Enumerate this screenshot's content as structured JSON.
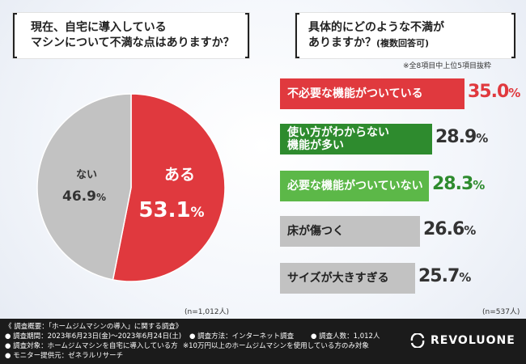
{
  "left_panel": {
    "title_line1": "現在、自宅に導入している",
    "title_line2": "マシンについて不満な点はありますか？",
    "sample_note": "(n=1,012人)"
  },
  "right_panel": {
    "title_line1": "具体的にどのような不満が",
    "title_line2": "ありますか？",
    "title_sub": "(複数回答可)",
    "top_note": "※全8項目中上位5項目抜粋",
    "sample_note": "(n=537人)"
  },
  "chart_data": [
    {
      "type": "pie",
      "title": "現在、自宅に導入しているマシンについて不満な点はありますか？",
      "slices": [
        {
          "label": "ある",
          "value": 53.1,
          "display": "53.1",
          "unit": "%",
          "color": "#e0393e"
        },
        {
          "label": "ない",
          "value": 46.9,
          "display": "46.9",
          "unit": "%",
          "color": "#c2c2c2"
        }
      ]
    },
    {
      "type": "bar",
      "orientation": "horizontal",
      "title": "具体的にどのような不満がありますか？(複数回答可)",
      "bars": [
        {
          "label": "不必要な機能がついている",
          "value": 35.0,
          "display": "35.0",
          "unit": "%",
          "color": "#e0393e",
          "text_color": "#ffffff",
          "value_color": "#e0393e"
        },
        {
          "label": "使い方がわからない\n機能が多い",
          "value": 28.9,
          "display": "28.9",
          "unit": "%",
          "color": "#2e8b2e",
          "text_color": "#ffffff",
          "value_color": "#333333"
        },
        {
          "label": "必要な機能がついていない",
          "value": 28.3,
          "display": "28.3",
          "unit": "%",
          "color": "#5cb848",
          "text_color": "#ffffff",
          "value_color": "#2e8b2e"
        },
        {
          "label": "床が傷つく",
          "value": 26.6,
          "display": "26.6",
          "unit": "%",
          "color": "#c2c2c2",
          "text_color": "#222222",
          "value_color": "#333333"
        },
        {
          "label": "サイズが大きすぎる",
          "value": 25.7,
          "display": "25.7",
          "unit": "%",
          "color": "#c2c2c2",
          "text_color": "#222222",
          "value_color": "#333333"
        }
      ]
    }
  ],
  "footer": {
    "line1": "《 調査概要：「ホームジムマシンの導入」に関する調査》",
    "line2": "● 調査期間：2023年6月23日(金)～2023年6月24日(土)",
    "line2b": "● 調査方法：インターネット調査",
    "line2c": "● 調査人数：1,012人",
    "line3": "● 調査対象：ホームジムマシンを自宅に導入している方",
    "line3b": "※10万円以上のホームジムマシンを使用している方のみ対象",
    "line4": "● モニター提供元：ゼネラルリサーチ",
    "logo": "REVOLUONE"
  }
}
